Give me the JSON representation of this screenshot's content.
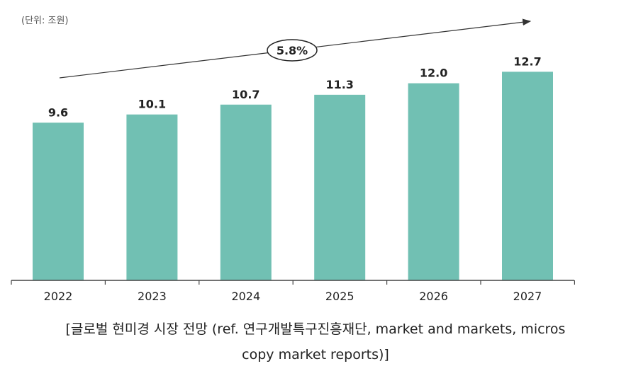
{
  "unit_label": "(단위: 조원)",
  "chart_data": {
    "type": "bar",
    "categories": [
      "2022",
      "2023",
      "2024",
      "2025",
      "2026",
      "2027"
    ],
    "values": [
      9.6,
      10.1,
      10.7,
      11.3,
      12.0,
      12.7
    ],
    "value_labels": [
      "9.6",
      "10.1",
      "10.7",
      "11.3",
      "12.0",
      "12.7"
    ],
    "ylim": [
      0,
      14
    ],
    "bar_color": "#71c0b3",
    "growth_annotation": "5.8%",
    "grid": false,
    "legend": "none"
  },
  "caption": {
    "line1": "[글로벌 현미경 시장 전망 (ref. 연구개발특구진흥재단, market and markets, micros",
    "line2": "copy market reports)]"
  }
}
